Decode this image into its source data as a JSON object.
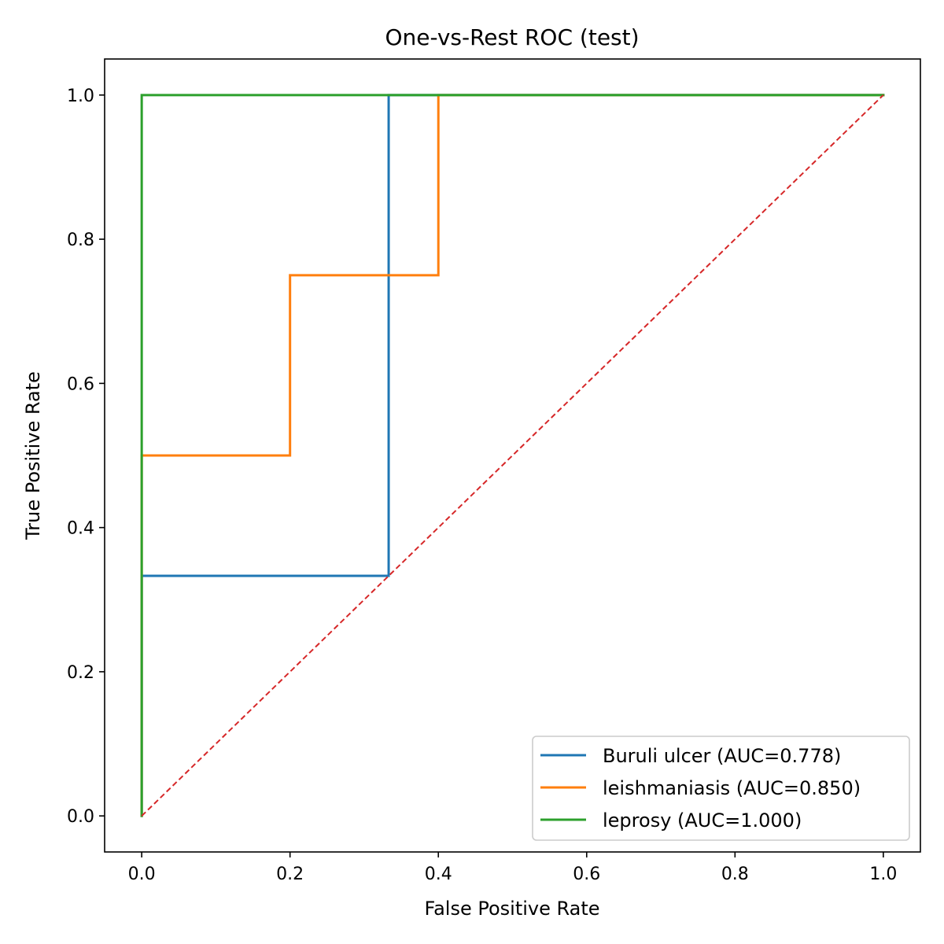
{
  "chart_data": {
    "type": "line",
    "title": "One-vs-Rest ROC (test)",
    "xlabel": "False Positive Rate",
    "ylabel": "True Positive Rate",
    "xlim": [
      -0.05,
      1.05
    ],
    "ylim": [
      -0.05,
      1.05
    ],
    "xticks": [
      0.0,
      0.2,
      0.4,
      0.6,
      0.8,
      1.0
    ],
    "yticks": [
      0.0,
      0.2,
      0.4,
      0.6,
      0.8,
      1.0
    ],
    "xtick_labels": [
      "0.0",
      "0.2",
      "0.4",
      "0.6",
      "0.8",
      "1.0"
    ],
    "ytick_labels": [
      "0.0",
      "0.2",
      "0.4",
      "0.6",
      "0.8",
      "1.0"
    ],
    "grid": false,
    "legend_position": "lower-right",
    "series": [
      {
        "name": "Buruli ulcer (AUC=0.778)",
        "color": "#1f77b4",
        "x": [
          0.0,
          0.0,
          0.333,
          0.333,
          1.0
        ],
        "y": [
          0.0,
          0.333,
          0.333,
          1.0,
          1.0
        ]
      },
      {
        "name": "leishmaniasis (AUC=0.850)",
        "color": "#ff7f0e",
        "x": [
          0.0,
          0.0,
          0.2,
          0.2,
          0.4,
          0.4,
          1.0
        ],
        "y": [
          0.0,
          0.5,
          0.5,
          0.75,
          0.75,
          1.0,
          1.0
        ]
      },
      {
        "name": "leprosy (AUC=1.000)",
        "color": "#2ca02c",
        "x": [
          0.0,
          0.0,
          1.0
        ],
        "y": [
          0.0,
          1.0,
          1.0
        ]
      }
    ],
    "reference_line": {
      "color": "#d62728",
      "style": "dashed",
      "x": [
        0.0,
        1.0
      ],
      "y": [
        0.0,
        1.0
      ]
    }
  }
}
